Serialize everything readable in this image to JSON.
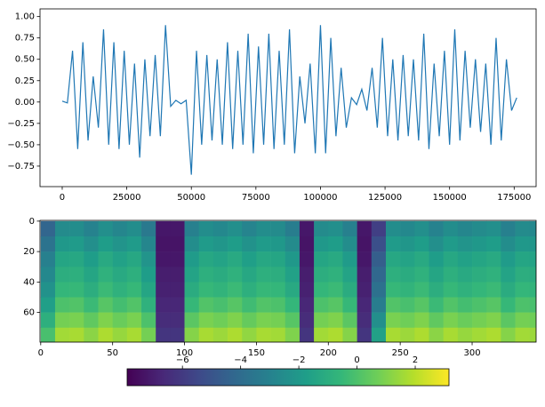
{
  "chart_data": [
    {
      "type": "line",
      "color": "#1f77b4",
      "xlim": [
        -8600,
        183500
      ],
      "ylim": [
        -0.99,
        1.09
      ],
      "xticks": [
        0,
        25000,
        50000,
        75000,
        100000,
        125000,
        150000,
        175000
      ],
      "yticks": [
        {
          "value": -0.75,
          "label": "−0.75"
        },
        {
          "value": -0.5,
          "label": "−0.50"
        },
        {
          "value": -0.25,
          "label": "−0.25"
        },
        {
          "value": 0,
          "label": "0.00"
        },
        {
          "value": 0.25,
          "label": "0.25"
        },
        {
          "value": 0.5,
          "label": "0.50"
        },
        {
          "value": 0.75,
          "label": "0.75"
        },
        {
          "value": 1,
          "label": "1.00"
        }
      ],
      "x": [
        0,
        2000,
        4000,
        6000,
        8000,
        10000,
        12000,
        14000,
        16000,
        18000,
        20000,
        22000,
        24000,
        26000,
        28000,
        30000,
        32000,
        34000,
        36000,
        38000,
        40000,
        42000,
        44000,
        46000,
        48000,
        50000,
        52000,
        54000,
        56000,
        58000,
        60000,
        62000,
        64000,
        66000,
        68000,
        70000,
        72000,
        74000,
        76000,
        78000,
        80000,
        82000,
        84000,
        86000,
        88000,
        90000,
        92000,
        94000,
        96000,
        98000,
        100000,
        102000,
        104000,
        106000,
        108000,
        110000,
        112000,
        114000,
        116000,
        118000,
        120000,
        122000,
        124000,
        126000,
        128000,
        130000,
        132000,
        134000,
        136000,
        138000,
        140000,
        142000,
        144000,
        146000,
        148000,
        150000,
        152000,
        154000,
        156000,
        158000,
        160000,
        162000,
        164000,
        166000,
        168000,
        170000,
        172000,
        174000,
        176000
      ],
      "values": [
        0.01,
        -0.01,
        0.6,
        -0.55,
        0.7,
        -0.45,
        0.3,
        -0.3,
        0.85,
        -0.5,
        0.7,
        -0.55,
        0.6,
        -0.5,
        0.45,
        -0.65,
        0.5,
        -0.4,
        0.55,
        -0.4,
        0.9,
        -0.05,
        0.02,
        -0.02,
        0.02,
        -0.85,
        0.6,
        -0.5,
        0.55,
        -0.45,
        0.5,
        -0.5,
        0.7,
        -0.55,
        0.6,
        -0.5,
        0.8,
        -0.6,
        0.65,
        -0.5,
        0.8,
        -0.55,
        0.6,
        -0.5,
        0.85,
        -0.6,
        0.3,
        -0.25,
        0.45,
        -0.6,
        0.9,
        -0.6,
        0.75,
        -0.4,
        0.4,
        -0.3,
        0.05,
        -0.03,
        0.15,
        -0.1,
        0.4,
        -0.3,
        0.75,
        -0.4,
        0.5,
        -0.45,
        0.55,
        -0.4,
        0.5,
        -0.45,
        0.8,
        -0.55,
        0.45,
        -0.4,
        0.6,
        -0.5,
        0.85,
        -0.45,
        0.6,
        -0.3,
        0.5,
        -0.35,
        0.45,
        -0.5,
        0.75,
        -0.45,
        0.5,
        -0.1,
        0.05
      ]
    },
    {
      "type": "heatmap",
      "xlim": [
        -0.5,
        344.5
      ],
      "ylim": [
        79.5,
        -0.5
      ],
      "xticks": [
        0,
        50,
        100,
        150,
        200,
        250,
        300
      ],
      "yticks": [
        0,
        20,
        40,
        60
      ],
      "xbins": [
        0,
        10,
        20,
        30,
        40,
        50,
        60,
        70,
        80,
        90,
        100,
        110,
        120,
        130,
        140,
        150,
        160,
        170,
        180,
        190,
        200,
        210,
        220,
        230,
        240,
        250,
        260,
        270,
        280,
        290,
        300,
        310,
        320,
        330,
        340,
        350
      ],
      "ybins": [
        0,
        10,
        20,
        30,
        40,
        50,
        60,
        70,
        80
      ],
      "colormap": [
        "#440154",
        "#482878",
        "#3e4989",
        "#31688e",
        "#26828e",
        "#1f9e89",
        "#35b779",
        "#6ece58",
        "#b5de2b",
        "#fde725"
      ],
      "clim": [
        -7.9,
        3.16
      ],
      "cticks": [
        {
          "value": -6,
          "label": "−6"
        },
        {
          "value": -4,
          "label": "−4"
        },
        {
          "value": -2,
          "label": "−2"
        },
        {
          "value": 0,
          "label": "0"
        },
        {
          "value": 2,
          "label": "2"
        }
      ],
      "values": [
        [
          -4.3,
          -2.6,
          -2.5,
          -3.0,
          -2.4,
          -2.8,
          -2.5,
          -3.4,
          -7.2,
          -7.2,
          -3.1,
          -2.5,
          -2.7,
          -2.4,
          -2.9,
          -2.5,
          -2.6,
          -3.2,
          -7.2,
          -2.6,
          -2.4,
          -3.1,
          -7.2,
          -5.8,
          -2.5,
          -2.7,
          -2.4,
          -3.0,
          -2.5,
          -2.8,
          -2.6,
          -2.4,
          -3.1,
          -2.6,
          -2.7
        ],
        [
          -3.7,
          -2.0,
          -1.9,
          -2.4,
          -1.8,
          -2.2,
          -1.9,
          -2.8,
          -7.3,
          -7.3,
          -2.5,
          -1.9,
          -2.1,
          -1.8,
          -2.3,
          -1.9,
          -2.0,
          -2.6,
          -7.3,
          -2.0,
          -1.8,
          -2.5,
          -7.3,
          -5.2,
          -1.9,
          -2.1,
          -1.8,
          -2.4,
          -1.9,
          -2.2,
          -2.0,
          -1.8,
          -2.5,
          -2.0,
          -2.1
        ],
        [
          -3.1,
          -1.4,
          -1.3,
          -1.8,
          -1.2,
          -1.6,
          -1.3,
          -2.2,
          -7.2,
          -7.2,
          -1.9,
          -1.3,
          -1.5,
          -1.2,
          -1.7,
          -1.3,
          -1.4,
          -2.0,
          -7.2,
          -1.4,
          -1.2,
          -1.9,
          -7.2,
          -4.6,
          -1.3,
          -1.5,
          -1.2,
          -1.8,
          -1.3,
          -1.6,
          -1.4,
          -1.2,
          -1.9,
          -1.4,
          -1.5
        ],
        [
          -2.7,
          -1.0,
          -0.9,
          -1.4,
          -0.8,
          -1.2,
          -0.9,
          -1.8,
          -7.0,
          -7.0,
          -1.5,
          -0.9,
          -1.1,
          -0.8,
          -1.3,
          -0.9,
          -1.0,
          -1.6,
          -7.0,
          -1.0,
          -0.8,
          -1.5,
          -7.0,
          -4.2,
          -0.9,
          -1.1,
          -0.8,
          -1.4,
          -0.9,
          -1.2,
          -1.0,
          -0.8,
          -1.5,
          -1.0,
          -1.1
        ],
        [
          -2.3,
          -0.6,
          -0.5,
          -1.0,
          -0.4,
          -0.8,
          -0.5,
          -1.4,
          -6.9,
          -6.9,
          -1.1,
          -0.5,
          -0.7,
          -0.4,
          -0.9,
          -0.5,
          -0.6,
          -1.2,
          -6.9,
          -0.6,
          -0.4,
          -1.1,
          -6.9,
          -3.8,
          -0.5,
          -0.7,
          -0.4,
          -1.0,
          -0.5,
          -0.8,
          -0.6,
          -0.4,
          -1.1,
          -0.6,
          -0.7
        ],
        [
          -1.7,
          0.0,
          0.1,
          -0.4,
          0.2,
          -0.2,
          0.1,
          -0.8,
          -6.7,
          -6.7,
          -0.5,
          0.1,
          -0.1,
          0.2,
          -0.3,
          0.1,
          0.0,
          -0.6,
          -6.7,
          0.0,
          0.2,
          -0.5,
          -6.7,
          -3.2,
          0.1,
          -0.1,
          0.2,
          -0.4,
          0.1,
          -0.2,
          0.0,
          0.2,
          -0.5,
          0.0,
          -0.1
        ],
        [
          -0.9,
          0.8,
          0.9,
          0.4,
          1.0,
          0.6,
          0.9,
          0.0,
          -6.5,
          -6.5,
          0.3,
          0.9,
          0.7,
          1.0,
          0.5,
          0.9,
          0.8,
          0.2,
          -6.5,
          0.8,
          1.0,
          0.3,
          -6.5,
          -2.4,
          0.9,
          0.7,
          1.0,
          0.4,
          0.9,
          0.6,
          0.8,
          1.0,
          0.3,
          0.8,
          0.7
        ],
        [
          -0.1,
          1.6,
          1.7,
          1.2,
          1.8,
          1.4,
          1.7,
          0.8,
          -6.2,
          -6.2,
          1.1,
          1.7,
          1.5,
          1.8,
          1.3,
          1.7,
          1.6,
          1.0,
          -6.2,
          1.6,
          1.8,
          1.1,
          -6.2,
          -1.6,
          1.7,
          1.5,
          1.8,
          1.2,
          1.7,
          1.4,
          1.6,
          1.8,
          1.1,
          1.6,
          1.5
        ]
      ]
    }
  ]
}
